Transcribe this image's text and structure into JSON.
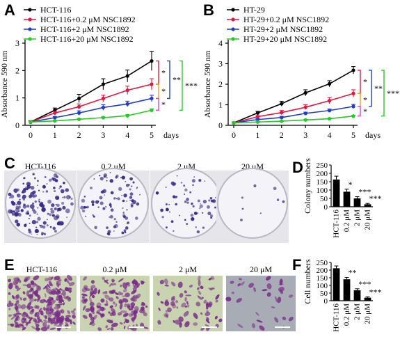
{
  "panels": {
    "A": "A",
    "B": "B",
    "C": "C",
    "D": "D",
    "E": "E",
    "F": "F"
  },
  "chart_data": [
    {
      "type": "line",
      "panel": "A",
      "ylabel": "Absorbance 590 nm",
      "xlabel": "days",
      "x": [
        0,
        1,
        2,
        3,
        4,
        5
      ],
      "ylim": [
        0,
        3
      ],
      "yticks": [
        0,
        1,
        2,
        3
      ],
      "series": [
        {
          "name": "HCT-116",
          "color": "#000000",
          "values": [
            0.12,
            0.55,
            0.98,
            1.5,
            1.8,
            2.35
          ],
          "errors": [
            0.05,
            0.08,
            0.15,
            0.2,
            0.22,
            0.35
          ]
        },
        {
          "name": "HCT-116+0.2 μM NSC1892",
          "color": "#e8143c",
          "values": [
            0.12,
            0.45,
            0.68,
            0.98,
            1.28,
            1.5
          ],
          "errors": [
            0.04,
            0.06,
            0.1,
            0.12,
            0.15,
            0.2
          ]
        },
        {
          "name": "HCT-116+2 μM NSC1892",
          "color": "#1f3ad6",
          "values": [
            0.12,
            0.28,
            0.45,
            0.65,
            0.78,
            0.98
          ],
          "errors": [
            0.03,
            0.04,
            0.08,
            0.1,
            0.1,
            0.12
          ]
        },
        {
          "name": "HCT-116+20 μM NSC1892",
          "color": "#22cc22",
          "values": [
            0.12,
            0.16,
            0.22,
            0.28,
            0.35,
            0.55
          ],
          "errors": [
            0.02,
            0.02,
            0.03,
            0.03,
            0.04,
            0.05
          ]
        }
      ],
      "significance": [
        "*",
        "*",
        "*",
        "**",
        "***"
      ]
    },
    {
      "type": "line",
      "panel": "B",
      "ylabel": "Absorbance 590 nm",
      "xlabel": "days",
      "x": [
        0,
        1,
        2,
        3,
        4,
        5
      ],
      "ylim": [
        0,
        4
      ],
      "yticks": [
        0,
        1,
        2,
        3,
        4
      ],
      "series": [
        {
          "name": "HT-29",
          "color": "#000000",
          "values": [
            0.12,
            0.6,
            1.05,
            1.58,
            2.02,
            2.68
          ],
          "errors": [
            0.04,
            0.08,
            0.12,
            0.15,
            0.15,
            0.18
          ]
        },
        {
          "name": "HT-29+0.2 μM NSC1892",
          "color": "#e8143c",
          "values": [
            0.12,
            0.42,
            0.62,
            0.88,
            1.2,
            1.55
          ],
          "errors": [
            0.03,
            0.05,
            0.1,
            0.12,
            0.15,
            0.18
          ]
        },
        {
          "name": "HT-29+2 μM NSC1892",
          "color": "#1f3ad6",
          "values": [
            0.12,
            0.28,
            0.38,
            0.58,
            0.72,
            0.92
          ],
          "errors": [
            0.02,
            0.04,
            0.05,
            0.06,
            0.07,
            0.1
          ]
        },
        {
          "name": "HT-29+20 μM NSC1892",
          "color": "#22cc22",
          "values": [
            0.12,
            0.16,
            0.2,
            0.26,
            0.32,
            0.45
          ],
          "errors": [
            0.02,
            0.02,
            0.02,
            0.03,
            0.03,
            0.04
          ]
        }
      ],
      "significance": [
        "*",
        "*",
        "*",
        "**",
        "***"
      ]
    },
    {
      "type": "bar",
      "panel": "D",
      "ylabel": "Colony numbers",
      "categories": [
        "HCT-116",
        "0.2 μM",
        "2 μM",
        "20 μM"
      ],
      "values": [
        163,
        90,
        50,
        15
      ],
      "errors": [
        20,
        15,
        10,
        5
      ],
      "ylim": [
        0,
        250
      ],
      "yticks": [
        0,
        50,
        100,
        150,
        200,
        250
      ],
      "significance": [
        "",
        "*",
        "***",
        "***"
      ]
    },
    {
      "type": "bar",
      "panel": "F",
      "ylabel": "Cell numbers",
      "categories": [
        "HCT-116",
        "0.2 μM",
        "2 μM",
        "20 μM"
      ],
      "values": [
        212,
        140,
        68,
        20
      ],
      "errors": [
        15,
        12,
        10,
        5
      ],
      "ylim": [
        0,
        250
      ],
      "yticks": [
        0,
        50,
        100,
        150,
        200,
        250
      ],
      "significance": [
        "",
        "**",
        "***",
        "***"
      ]
    }
  ],
  "panel_c_labels": [
    "HCT-116",
    "0.2 μM",
    "2 μM",
    "20 μM"
  ],
  "panel_e_labels": [
    "HCT-116",
    "0.2 μM",
    "2 μM",
    "20 μM"
  ],
  "colors": {
    "crystal_violet": "#3a2a8a",
    "purple_stain": "#7a2a8a",
    "mesh_green": "#c8d3b0"
  }
}
